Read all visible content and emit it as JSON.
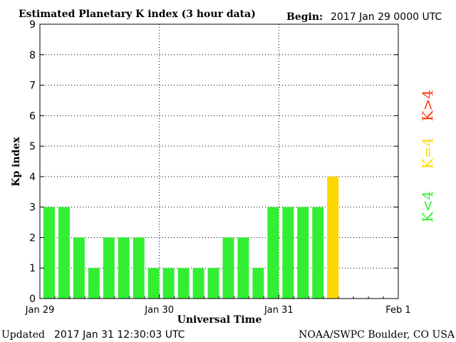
{
  "header": {
    "title": "Estimated Planetary K index (3 hour data)",
    "begin_label": "Begin:",
    "begin_value": "2017 Jan 29 0000 UTC"
  },
  "footer": {
    "updated_label": "Updated",
    "updated_value": "2017 Jan 31 12:30:03 UTC",
    "credit": "NOAA/SWPC Boulder, CO USA"
  },
  "legend": {
    "items": [
      {
        "label": "K>4",
        "color": "#ff3300"
      },
      {
        "label": "K=4",
        "color": "#ffd700"
      },
      {
        "label": "K<4",
        "color": "#33ee33"
      }
    ]
  },
  "chart_data": {
    "type": "bar",
    "title": "Estimated Planetary K index (3 hour data)",
    "xlabel": "Universal Time",
    "ylabel": "Kp index",
    "ylim": [
      0,
      9
    ],
    "y_ticks": [
      "0",
      "1",
      "2",
      "3",
      "4",
      "5",
      "6",
      "7",
      "8",
      "9"
    ],
    "x_ticks": [
      "Jan 29",
      "Jan 30",
      "Jan 31",
      "Feb 1"
    ],
    "slots_total": 24,
    "grid": true,
    "colors": {
      "below4": "#33ee33",
      "eq4": "#ffd700",
      "above4": "#ff3300"
    },
    "categories": [
      "Jan 29 00",
      "Jan 29 03",
      "Jan 29 06",
      "Jan 29 09",
      "Jan 29 12",
      "Jan 29 15",
      "Jan 29 18",
      "Jan 29 21",
      "Jan 30 00",
      "Jan 30 03",
      "Jan 30 06",
      "Jan 30 09",
      "Jan 30 12",
      "Jan 30 15",
      "Jan 30 18",
      "Jan 30 21",
      "Jan 31 00",
      "Jan 31 03",
      "Jan 31 06",
      "Jan 31 09"
    ],
    "values": [
      3,
      3,
      2,
      1,
      2,
      2,
      2,
      1,
      1,
      1,
      1,
      1,
      2,
      2,
      1,
      3,
      3,
      3,
      3,
      4
    ]
  }
}
